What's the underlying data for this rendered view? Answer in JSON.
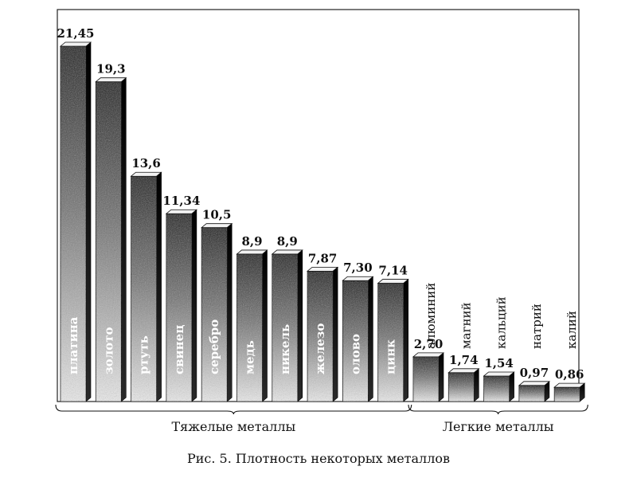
{
  "chart_data": {
    "type": "bar",
    "categories": [
      "платина",
      "золото",
      "ртуть",
      "свинец",
      "серебро",
      "медь",
      "никель",
      "железо",
      "олово",
      "цинк",
      "алюминий",
      "магний",
      "кальций",
      "натрий",
      "калий"
    ],
    "values": [
      21.45,
      19.3,
      13.6,
      11.34,
      10.5,
      8.9,
      8.9,
      7.87,
      7.3,
      7.14,
      2.7,
      1.74,
      1.54,
      0.97,
      0.86
    ],
    "value_labels": [
      "21,45",
      "19,3",
      "13,6",
      "11,34",
      "10,5",
      "8,9",
      "8,9",
      "7,87",
      "7,30",
      "7,14",
      "2,70",
      "1,74",
      "1,54",
      "0,97",
      "0,86"
    ],
    "groups": [
      {
        "label": "Тяжелые металлы",
        "from": 0,
        "to": 9
      },
      {
        "label": "Легкие металлы",
        "from": 10,
        "to": 14
      }
    ],
    "ylim": [
      0,
      21.45
    ],
    "grid": false,
    "xlabel": "",
    "ylabel": ""
  },
  "caption": "Рис. 5. Плотность некоторых металлов"
}
